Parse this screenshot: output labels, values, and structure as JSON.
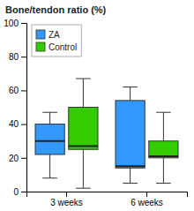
{
  "chart_data": {
    "type": "box",
    "title": "Bone/tendon ratio (%)",
    "categories": [
      "3 weeks",
      "6 weeks"
    ],
    "series": [
      {
        "name": "ZA",
        "color": "#3399FF",
        "whislo": [
          8,
          5
        ],
        "q1": [
          22,
          14
        ],
        "median": [
          30,
          15
        ],
        "q3": [
          40,
          54
        ],
        "whishi": [
          47,
          62
        ]
      },
      {
        "name": "Control",
        "color": "#33CC00",
        "whislo": [
          2,
          5
        ],
        "q1": [
          25,
          20
        ],
        "median": [
          27,
          21
        ],
        "q3": [
          50,
          30
        ],
        "whishi": [
          67,
          47
        ]
      }
    ],
    "ylim": [
      0,
      100
    ],
    "yticks": [
      0,
      20,
      40,
      60,
      80,
      100
    ],
    "legend": "upper left",
    "grid": false
  }
}
